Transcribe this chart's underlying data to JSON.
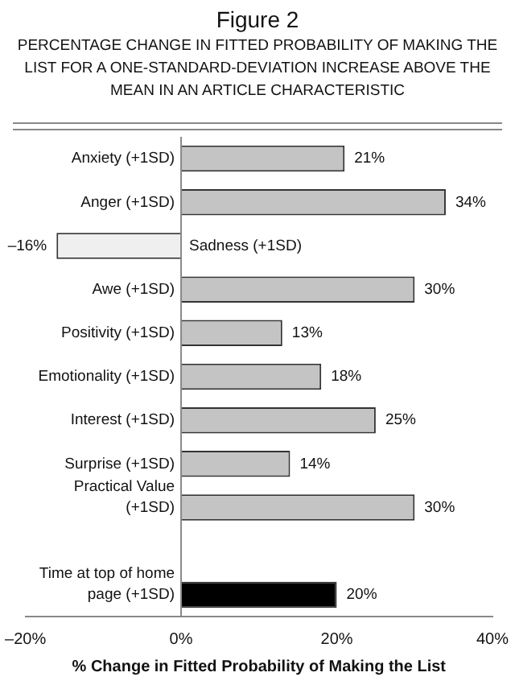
{
  "chart_data": {
    "type": "bar",
    "orientation": "horizontal",
    "title": "Figure 2",
    "subtitle": "PERCENTAGE CHANGE IN FITTED PROBABILITY OF MAKING THE LIST FOR A ONE-STANDARD-DEVIATION INCREASE ABOVE THE MEAN IN AN ARTICLE CHARACTERISTIC",
    "xlabel": "% Change in Fitted Probability of Making the List",
    "categories": [
      "Anxiety (+1SD)",
      "Anger (+1SD)",
      "Sadness (+1SD)",
      "Awe (+1SD)",
      "Positivity (+1SD)",
      "Emotionality (+1SD)",
      "Interest (+1SD)",
      "Surprise (+1SD)",
      "Practical Value (+1SD)",
      null,
      "Time at top of home page (+1SD)"
    ],
    "values": [
      21,
      34,
      -16,
      30,
      13,
      18,
      25,
      14,
      30,
      null,
      20
    ],
    "colors": [
      "#c4c4c4",
      "#c4c4c4",
      "#efefef",
      "#c4c4c4",
      "#c4c4c4",
      "#c4c4c4",
      "#c4c4c4",
      "#c4c4c4",
      "#c4c4c4",
      "#c4c4c4",
      "#000000"
    ],
    "value_labels": [
      "21%",
      "34%",
      "–16%",
      "30%",
      "13%",
      "18%",
      "25%",
      "14%",
      "30%",
      null,
      "20%"
    ],
    "xlim": [
      -20,
      40
    ],
    "xticks": [
      {
        "value": -20,
        "label": "–20%"
      },
      {
        "value": 0,
        "label": "0%"
      },
      {
        "value": 20,
        "label": "20%"
      },
      {
        "value": 40,
        "label": "40%"
      }
    ],
    "grid": false,
    "legend": false
  }
}
